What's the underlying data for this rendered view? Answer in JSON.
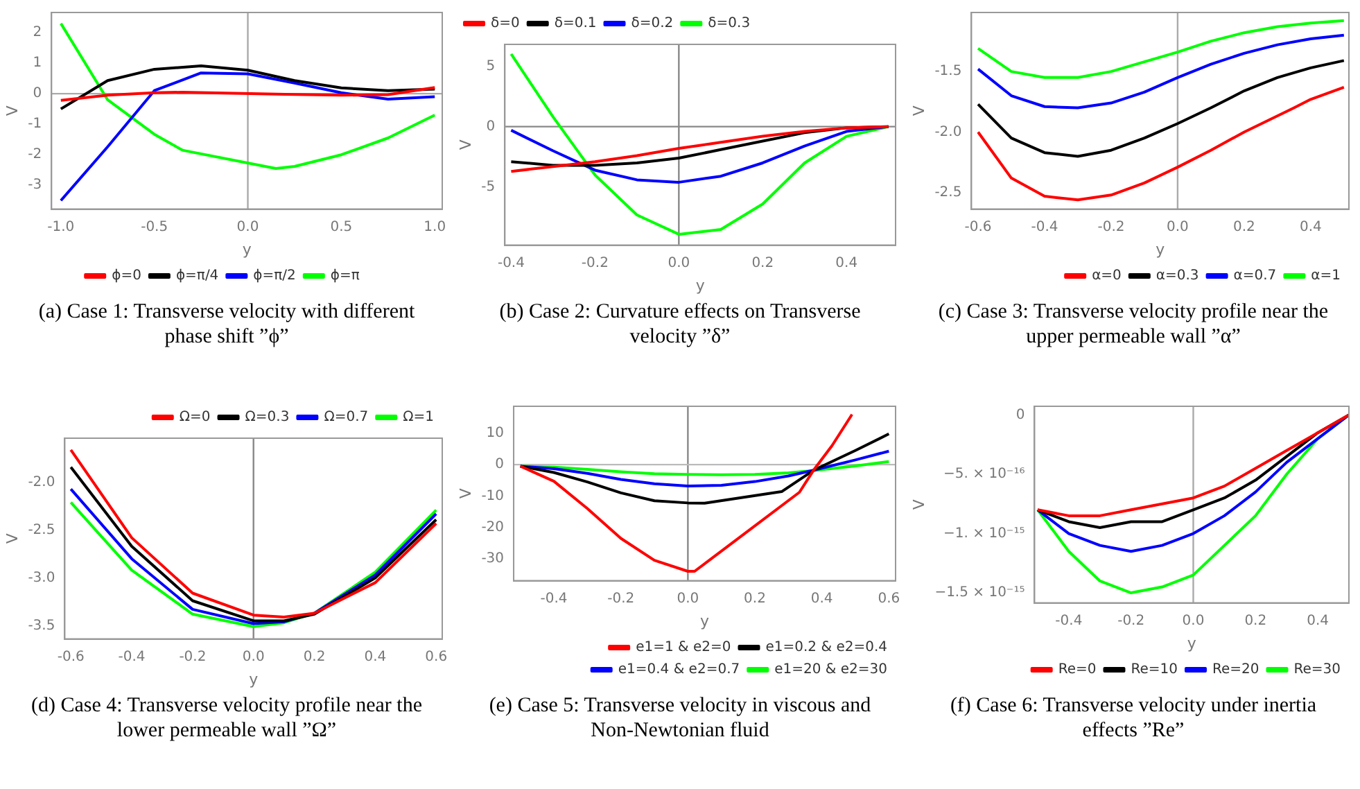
{
  "chart_data": [
    {
      "type": "line",
      "xlabel": "y",
      "ylabel": "V",
      "legend": "bottom",
      "marker": "none",
      "xlim": [
        -1.05,
        1.04
      ],
      "ylim": [
        -3.78,
        2.66
      ],
      "xticks": [
        {
          "value": -1,
          "label": "-1.0"
        },
        -0.5,
        {
          "value": 0,
          "label": "0.0"
        },
        0.5,
        {
          "value": 1,
          "label": "1.0"
        }
      ],
      "yticks": [
        -3,
        -2,
        -1,
        0,
        1,
        2
      ],
      "x": [
        -1,
        -0.75,
        -0.5,
        -0.25,
        0,
        0.25,
        0.5,
        0.75,
        1
      ],
      "ref_lines": [
        {
          "axis": "x",
          "value": 0,
          "color": "#aaaaaa"
        },
        {
          "axis": "y",
          "value": 0,
          "color": "#aaaaaa"
        }
      ],
      "series": [
        {
          "name": "ϕ=0",
          "color": "#ff0000",
          "x": [
            -1,
            -0.75,
            -0.5,
            -0.35,
            0.2,
            0.5,
            0.75,
            1
          ],
          "values": [
            -0.22,
            -0.05,
            0.03,
            0.05,
            -0.02,
            -0.05,
            -0.03,
            0.2
          ]
        },
        {
          "name": "ϕ=π/4",
          "color": "#000000",
          "values": [
            -0.5,
            0.43,
            0.8,
            0.91,
            0.77,
            0.43,
            0.19,
            0.1,
            0.15
          ]
        },
        {
          "name": "ϕ=π/2",
          "color": "#0000ff",
          "values": [
            -3.5,
            -1.74,
            0.1,
            0.68,
            0.65,
            0.35,
            0.03,
            -0.18,
            -0.1
          ]
        },
        {
          "name": "ϕ=π",
          "color": "#00ff00",
          "x": [
            -1,
            -0.75,
            -0.5,
            -0.35,
            0.15,
            0.25,
            0.5,
            0.75,
            1
          ],
          "values": [
            2.3,
            -0.2,
            -1.33,
            -1.85,
            -2.45,
            -2.38,
            -2.0,
            -1.45,
            -0.7
          ]
        }
      ],
      "annotations": [
        "(a) Case 1: Transverse velocity with different phase shift ”ϕ”"
      ]
    },
    {
      "type": "line",
      "xlabel": "y",
      "ylabel": "V",
      "legend": "top left",
      "marker": "none",
      "xlim": [
        -0.415,
        0.517
      ],
      "ylim": [
        -9.8,
        6.8
      ],
      "xticks": [
        -0.4,
        -0.2,
        {
          "value": 0,
          "label": "0.0"
        },
        0.2,
        0.4
      ],
      "yticks": [
        -5,
        0,
        5
      ],
      "x": [
        -0.4,
        -0.3,
        -0.2,
        -0.1,
        0,
        0.1,
        0.2,
        0.3,
        0.4,
        0.5
      ],
      "ref_lines": [
        {
          "axis": "x",
          "value": 0,
          "color": "#888888"
        },
        {
          "axis": "y",
          "value": 0,
          "color": "#888888"
        }
      ],
      "series": [
        {
          "name": "δ=0",
          "color": "#ff0000",
          "values": [
            -3.7,
            -3.3,
            -2.9,
            -2.4,
            -1.8,
            -1.3,
            -0.8,
            -0.4,
            -0.1,
            0
          ]
        },
        {
          "name": "δ=0.1",
          "color": "#000000",
          "values": [
            -2.9,
            -3.2,
            -3.2,
            -3.0,
            -2.6,
            -1.9,
            -1.2,
            -0.5,
            -0.1,
            0
          ]
        },
        {
          "name": "δ=0.2",
          "color": "#0000ff",
          "values": [
            -0.3,
            -2.0,
            -3.6,
            -4.4,
            -4.6,
            -4.1,
            -3.0,
            -1.6,
            -0.4,
            0
          ]
        },
        {
          "name": "δ=0.3",
          "color": "#00ff00",
          "values": [
            6.0,
            0.8,
            -4.0,
            -7.3,
            -8.9,
            -8.5,
            -6.4,
            -3.0,
            -0.8,
            0
          ]
        }
      ],
      "annotations": [
        "(b) Case 2: Curvature effects on Transverse velocity ”δ”"
      ]
    },
    {
      "type": "line",
      "xlabel": "y",
      "ylabel": "V",
      "legend": "bottom right",
      "marker": "none",
      "xlim": [
        -0.62,
        0.515
      ],
      "ylim": [
        -2.636,
        -1.013
      ],
      "xticks": [
        -0.6,
        -0.4,
        -0.2,
        {
          "value": 0,
          "label": "0.0"
        },
        0.2,
        0.4
      ],
      "yticks": [
        -2.5,
        {
          "value": -2,
          "label": "-2.0"
        },
        -1.5
      ],
      "x": [
        -0.6,
        -0.5,
        -0.4,
        -0.3,
        -0.2,
        -0.1,
        0,
        0.1,
        0.2,
        0.3,
        0.4,
        0.5
      ],
      "ref_lines": [
        {
          "axis": "x",
          "value": 0,
          "color": "#aaaaaa"
        }
      ],
      "series": [
        {
          "name": "α=0",
          "color": "#ff0000",
          "x": [
            -0.6,
            -0.5,
            -0.4,
            -0.3,
            -0.2,
            -0.1,
            0,
            0.1,
            0.2,
            0.35,
            0.4,
            0.5
          ],
          "values": [
            -2.0,
            -2.38,
            -2.53,
            -2.56,
            -2.52,
            -2.42,
            -2.29,
            -2.15,
            -2.0,
            -1.8,
            -1.73,
            -1.63
          ]
        },
        {
          "name": "α=0.3",
          "color": "#000000",
          "values": [
            -1.77,
            -2.05,
            -2.17,
            -2.2,
            -2.15,
            -2.05,
            -1.93,
            -1.8,
            -1.66,
            -1.55,
            -1.47,
            -1.41
          ]
        },
        {
          "name": "α=0.7",
          "color": "#0000ff",
          "values": [
            -1.48,
            -1.7,
            -1.79,
            -1.8,
            -1.76,
            -1.67,
            -1.55,
            -1.44,
            -1.35,
            -1.28,
            -1.23,
            -1.2
          ]
        },
        {
          "name": "α=1",
          "color": "#00ff00",
          "values": [
            -1.31,
            -1.5,
            -1.55,
            -1.55,
            -1.5,
            -1.42,
            -1.34,
            -1.25,
            -1.18,
            -1.13,
            -1.1,
            -1.08
          ]
        }
      ],
      "annotations": [
        "(c) Case 3: Transverse velocity profile near the upper permeable wall ”α”"
      ]
    },
    {
      "type": "line",
      "xlabel": "y",
      "ylabel": "V",
      "legend": "top right",
      "marker": "none",
      "xlim": [
        -0.62,
        0.62
      ],
      "ylim": [
        -3.64,
        -1.537
      ],
      "xticks": [
        -0.6,
        -0.4,
        -0.2,
        {
          "value": 0,
          "label": "0.0"
        },
        0.2,
        0.4,
        0.6
      ],
      "yticks": [
        -3.5,
        {
          "value": -3,
          "label": "-3.0"
        },
        -2.5,
        {
          "value": -2,
          "label": "-2.0"
        }
      ],
      "x": [
        -0.6,
        -0.4,
        -0.2,
        0,
        0.1,
        0.2,
        0.4,
        0.6
      ],
      "ref_lines": [
        {
          "axis": "x",
          "value": 0,
          "color": "#888888"
        }
      ],
      "series": [
        {
          "name": "Ω=0",
          "color": "#ff0000",
          "values": [
            -1.66,
            -2.58,
            -3.16,
            -3.39,
            -3.41,
            -3.37,
            -3.05,
            -2.43
          ]
        },
        {
          "name": "Ω=0.3",
          "color": "#000000",
          "values": [
            -1.84,
            -2.67,
            -3.24,
            -3.45,
            -3.45,
            -3.38,
            -3.0,
            -2.39
          ]
        },
        {
          "name": "Ω=0.7",
          "color": "#0000ff",
          "values": [
            -2.07,
            -2.8,
            -3.33,
            -3.48,
            -3.46,
            -3.37,
            -2.97,
            -2.33
          ]
        },
        {
          "name": "Ω=1",
          "color": "#00ff00",
          "values": [
            -2.21,
            -2.92,
            -3.38,
            -3.51,
            -3.47,
            -3.37,
            -2.94,
            -2.29
          ]
        }
      ],
      "annotations": [
        "(d) Case 4: Transverse velocity profile near the lower permeable wall ”Ω”"
      ]
    },
    {
      "type": "line",
      "xlabel": "y",
      "ylabel": "V",
      "legend": "bottom right",
      "marker": "none",
      "xlim": [
        -0.52,
        0.62
      ],
      "ylim": [
        -37,
        18.6
      ],
      "xticks": [
        -0.4,
        -0.2,
        {
          "value": 0,
          "label": "0.0"
        },
        0.2,
        0.4,
        0.6
      ],
      "yticks": [
        -30,
        -20,
        -10,
        0,
        10
      ],
      "x": [
        -0.5,
        -0.4,
        -0.3,
        -0.2,
        -0.1,
        0,
        0.1,
        0.2,
        0.3,
        0.375,
        0.5,
        0.6
      ],
      "ref_lines": [
        {
          "axis": "x",
          "value": 0,
          "color": "#888888"
        },
        {
          "axis": "y",
          "value": 0,
          "color": "#bbbbbb"
        }
      ],
      "series": [
        {
          "name": "e1=1 & e2=0",
          "color": "#ff0000",
          "x": [
            -0.5,
            -0.4,
            -0.3,
            -0.2,
            -0.1,
            0,
            0.02,
            0.333,
            0.375,
            0.43,
            0.49
          ],
          "values": [
            -0.5,
            -5.3,
            -14,
            -23.5,
            -30.5,
            -34,
            -34,
            -8.8,
            -1.8,
            6,
            16
          ]
        },
        {
          "name": "e1=0.2 & e2=0.4",
          "color": "#000000",
          "x": [
            -0.5,
            -0.4,
            -0.3,
            -0.2,
            -0.1,
            0,
            0.05,
            0.28,
            0.375,
            0.5,
            0.6
          ],
          "values": [
            -0.5,
            -2.5,
            -5.5,
            -9,
            -11.5,
            -12.2,
            -12.3,
            -8.6,
            -1.8,
            4.5,
            9.8
          ]
        },
        {
          "name": "e1=0.4 & e2=0.7",
          "color": "#0000ff",
          "values": [
            -0.5,
            -1.3,
            -2.8,
            -4.7,
            -6.1,
            -6.8,
            -6.6,
            -5.4,
            -3.6,
            -1.8,
            1.5,
            4.3
          ]
        },
        {
          "name": "e1=20 & e2=30",
          "color": "#00ff00",
          "values": [
            -0.5,
            -0.8,
            -1.5,
            -2.3,
            -2.9,
            -3.1,
            -3.2,
            -3.1,
            -2.6,
            -1.9,
            -0.4,
            1.0
          ]
        }
      ],
      "annotations": [
        "(e) Case 5: Transverse velocity in viscous and Non-Newtonian fluid"
      ]
    },
    {
      "type": "line",
      "xlabel": "y",
      "ylabel": "V",
      "legend": "bottom right",
      "marker": "none",
      "xlim": [
        -0.51,
        0.5
      ],
      "ylim": [
        -1.585e-15,
        7.3e-17
      ],
      "xticks": [
        -0.4,
        -0.2,
        {
          "value": 0,
          "label": "0.0"
        },
        0.2,
        0.4
      ],
      "yticks": [
        {
          "value": -1.5e-15,
          "label": "−1.5 × 10⁻¹⁵"
        },
        {
          "value": -1e-15,
          "label": "−1. × 10⁻¹⁵"
        },
        {
          "value": -5e-16,
          "label": "−5. × 10⁻¹⁶"
        },
        0
      ],
      "x": [
        -0.5,
        -0.4,
        -0.3,
        -0.2,
        -0.1,
        0,
        0.1,
        0.2,
        0.3,
        0.4,
        0.5
      ],
      "ref_lines": [
        {
          "axis": "x",
          "value": 0,
          "color": "#aaaaaa"
        }
      ],
      "series": [
        {
          "name": "Re=0",
          "color": "#ff0000",
          "values": [
            -8e-16,
            -8.5e-16,
            -8.5e-16,
            -8e-16,
            -7.5e-16,
            -7e-16,
            -6e-16,
            -4.5e-16,
            -3e-16,
            -1.5e-16,
            0
          ]
        },
        {
          "name": "Re=10",
          "color": "#000000",
          "values": [
            -8e-16,
            -9e-16,
            -9.5e-16,
            -9e-16,
            -9e-16,
            -8e-16,
            -7e-16,
            -5.5e-16,
            -3.5e-16,
            -1.5e-16,
            0
          ]
        },
        {
          "name": "Re=20",
          "color": "#0000ff",
          "values": [
            -8e-16,
            -1e-15,
            -1.1e-15,
            -1.15e-15,
            -1.1e-15,
            -1e-15,
            -8.5e-16,
            -6.5e-16,
            -4e-16,
            -2e-16,
            0
          ]
        },
        {
          "name": "Re=30",
          "color": "#00ff00",
          "values": [
            -8e-16,
            -1.15e-15,
            -1.4e-15,
            -1.5e-15,
            -1.45e-15,
            -1.35e-15,
            -1.1e-15,
            -8.5e-16,
            -5e-16,
            -2e-16,
            0
          ]
        }
      ],
      "annotations": [
        "(f) Case 6: Transverse velocity under inertia effects ”Re”"
      ]
    }
  ]
}
